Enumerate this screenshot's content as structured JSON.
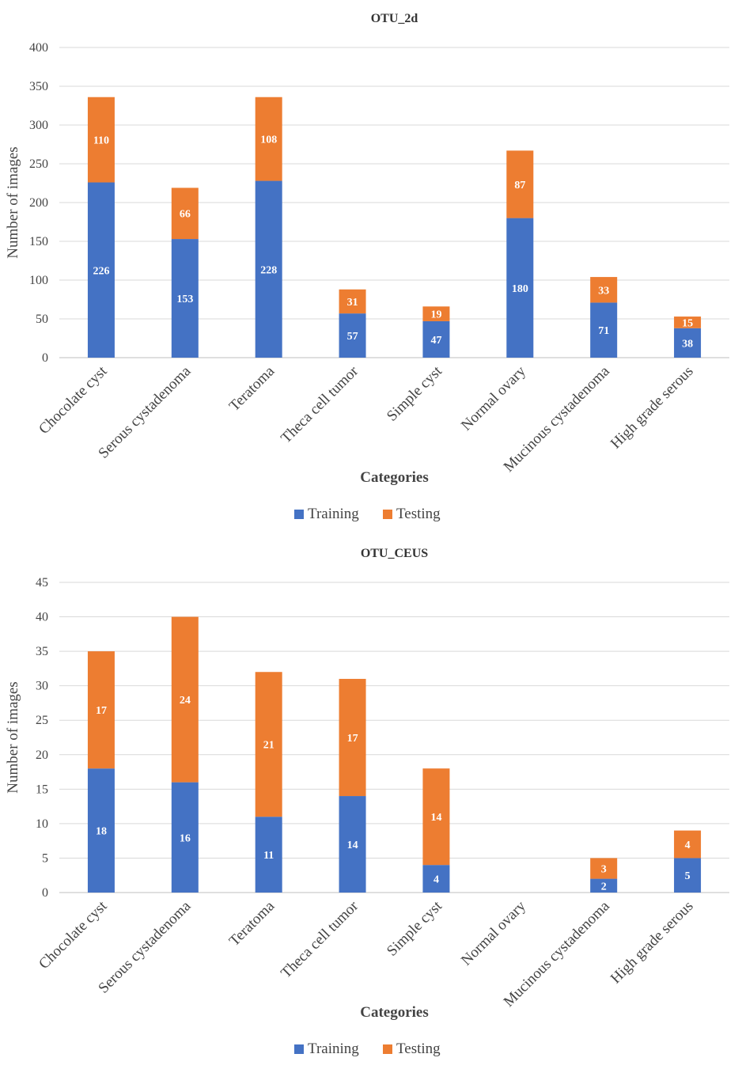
{
  "chart_data": [
    {
      "type": "bar",
      "stacked": true,
      "title": "OTU_2d",
      "xlabel": "Categories",
      "ylabel": "Number of images",
      "ylim": [
        0,
        400
      ],
      "ystep": 50,
      "grid": true,
      "legend": "bottom",
      "categories": [
        "Chocolate cyst",
        "Serous cystadenoma",
        "Teratoma",
        "Theca cell tumor",
        "Simple cyst",
        "Normal ovary",
        "Mucinous cystadenoma",
        "High grade serous"
      ],
      "series": [
        {
          "name": "Training",
          "color": "#4472C4",
          "values": [
            226,
            153,
            228,
            57,
            47,
            180,
            71,
            38
          ]
        },
        {
          "name": "Testing",
          "color": "#ED7D31",
          "values": [
            110,
            66,
            108,
            31,
            19,
            87,
            33,
            15
          ]
        }
      ]
    },
    {
      "type": "bar",
      "stacked": true,
      "title": "OTU_CEUS",
      "xlabel": "Categories",
      "ylabel": "Number of images",
      "ylim": [
        0,
        45
      ],
      "ystep": 5,
      "grid": true,
      "legend": "bottom",
      "categories": [
        "Chocolate cyst",
        "Serous cystadenoma",
        "Teratoma",
        "Theca cell tumor",
        "Simple cyst",
        "Normal ovary",
        "Mucinous cystadenoma",
        "High grade serous"
      ],
      "series": [
        {
          "name": "Training",
          "color": "#4472C4",
          "values": [
            18,
            16,
            11,
            14,
            4,
            0,
            2,
            5
          ]
        },
        {
          "name": "Testing",
          "color": "#ED7D31",
          "values": [
            17,
            24,
            21,
            17,
            14,
            0,
            3,
            4
          ]
        }
      ]
    }
  ]
}
